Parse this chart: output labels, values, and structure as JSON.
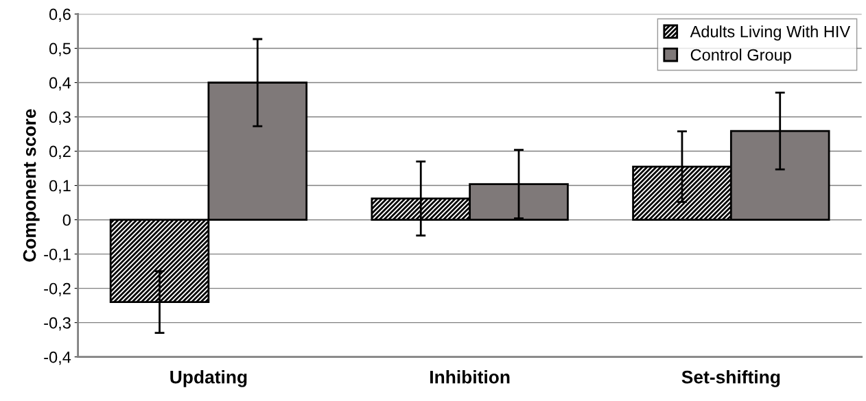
{
  "chart_data": {
    "type": "bar",
    "ylabel": "Component score",
    "categories": [
      "Updating",
      "Inhibition",
      "Set-shifting"
    ],
    "series": [
      {
        "name": "Adults Living With HIV",
        "color": "#000000",
        "values": [
          -0.24,
          0.062,
          0.155
        ],
        "errors": [
          0.09,
          0.108,
          0.103
        ]
      },
      {
        "name": "Control Group",
        "color": "#7f7979",
        "values": [
          0.4,
          0.104,
          0.259
        ],
        "errors": [
          0.127,
          0.1,
          0.112
        ]
      }
    ],
    "ylim": [
      -0.4,
      0.6
    ],
    "yticks": [
      {
        "value": -0.4,
        "label": "-0,4"
      },
      {
        "value": -0.3,
        "label": "-0,3"
      },
      {
        "value": -0.2,
        "label": "-0,2"
      },
      {
        "value": -0.1,
        "label": "-0,1"
      },
      0,
      {
        "value": 0.1,
        "label": "0,1"
      },
      {
        "value": 0.2,
        "label": "0,2"
      },
      {
        "value": 0.3,
        "label": "0,3"
      },
      {
        "value": 0.4,
        "label": "0,4"
      },
      {
        "value": 0.5,
        "label": "0,5"
      },
      {
        "value": 0.6,
        "label": "0,6"
      }
    ],
    "grid": "y",
    "legend": "top right"
  }
}
